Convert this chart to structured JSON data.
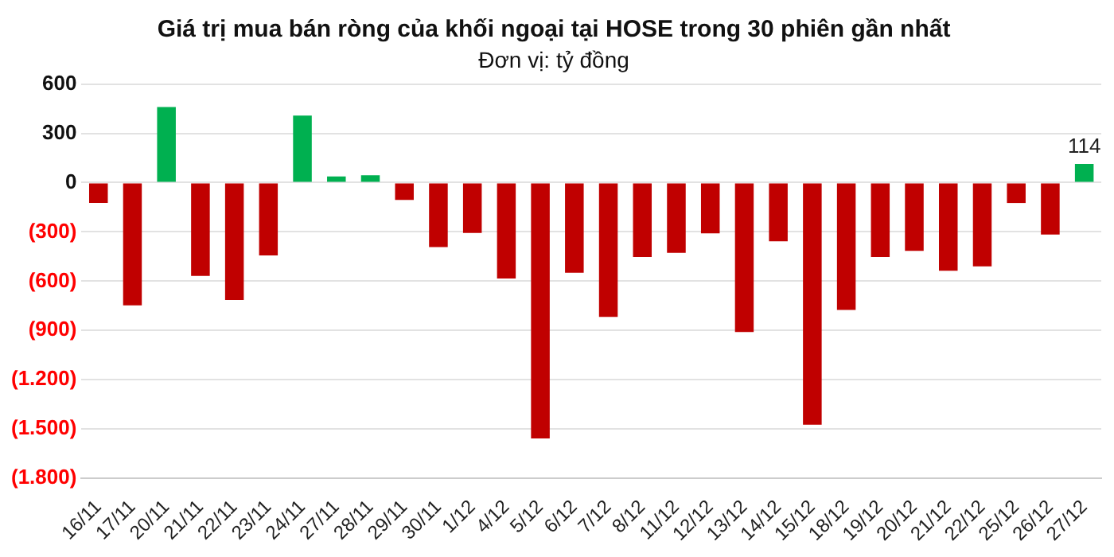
{
  "chart_data": {
    "type": "bar",
    "title": "Giá trị mua bán ròng của khối ngoại tại HOSE trong 30 phiên gần nhất",
    "subtitle": "Đơn vị: tỷ đồng",
    "categories": [
      "16/11",
      "17/11",
      "20/11",
      "21/11",
      "22/11",
      "23/11",
      "24/11",
      "27/11",
      "28/11",
      "29/11",
      "30/11",
      "1/12",
      "4/12",
      "5/12",
      "6/12",
      "7/12",
      "8/12",
      "11/12",
      "12/12",
      "13/12",
      "14/12",
      "15/12",
      "18/12",
      "19/12",
      "20/12",
      "21/12",
      "22/12",
      "25/12",
      "26/12",
      "27/12"
    ],
    "values": [
      -124,
      -747,
      460,
      -568,
      -714,
      -443,
      408,
      38,
      45,
      -105,
      -392,
      -306,
      -584,
      -1557,
      -549,
      -817,
      -453,
      -427,
      -309,
      -909,
      -357,
      -1474,
      -775,
      -453,
      -415,
      -536,
      -510,
      -124,
      -316,
      114
    ],
    "colors": [
      "#c00000",
      "#c00000",
      "#00b050",
      "#c00000",
      "#c00000",
      "#c00000",
      "#00b050",
      "#00b050",
      "#00b050",
      "#c00000",
      "#c00000",
      "#c00000",
      "#c00000",
      "#c00000",
      "#c00000",
      "#c00000",
      "#c00000",
      "#c00000",
      "#c00000",
      "#c00000",
      "#c00000",
      "#c00000",
      "#c00000",
      "#c00000",
      "#c00000",
      "#c00000",
      "#c00000",
      "#c00000",
      "#c00000",
      "#00b050"
    ],
    "value_labels": [
      null,
      null,
      null,
      null,
      null,
      null,
      null,
      null,
      null,
      null,
      null,
      null,
      null,
      null,
      null,
      null,
      null,
      null,
      null,
      null,
      null,
      null,
      null,
      null,
      null,
      null,
      null,
      null,
      null,
      "114"
    ],
    "ylim": [
      -1800,
      600
    ],
    "yticks": [
      600,
      300,
      0,
      {
        "value": -300,
        "label": "(300)"
      },
      {
        "value": -600,
        "label": "(600)"
      },
      {
        "value": -900,
        "label": "(900)"
      },
      {
        "value": -1200,
        "label": "(1.200)"
      },
      {
        "value": -1500,
        "label": "(1.500)"
      },
      {
        "value": -1800,
        "label": "(1.800)"
      }
    ],
    "grid": "y",
    "legend": false
  }
}
